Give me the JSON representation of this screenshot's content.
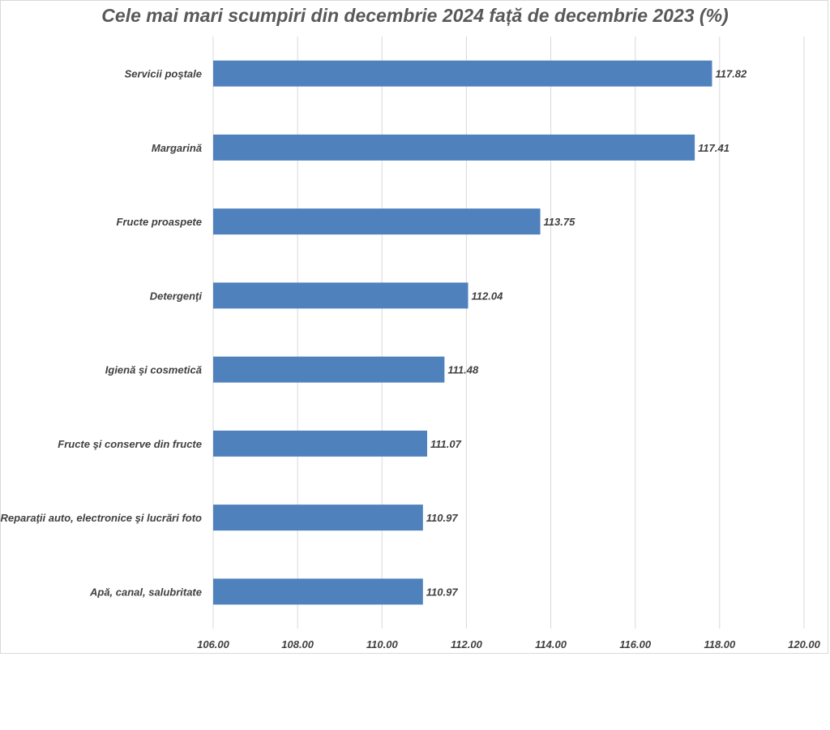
{
  "chart_data": {
    "type": "bar",
    "orientation": "horizontal",
    "title": "Cele mai mari scumpiri din decembrie 2024 față de decembrie 2023 (%)",
    "categories": [
      "Servicii poştale",
      "Margarină",
      "Fructe proaspete",
      "Detergenţi",
      "Igienă şi cosmetică",
      "Fructe şi conserve din fructe",
      "Reparaţii auto, electronice şi lucrări foto",
      "Apă, canal, salubritate"
    ],
    "values": [
      117.82,
      117.41,
      113.75,
      112.04,
      111.48,
      111.07,
      110.97,
      110.97
    ],
    "value_labels": [
      "117.82",
      "117.41",
      "113.75",
      "112.04",
      "111.48",
      "111.07",
      "110.97",
      "110.97"
    ],
    "xlim": [
      106,
      120
    ],
    "ticks": [
      "106.00",
      "108.00",
      "110.00",
      "112.00",
      "114.00",
      "116.00",
      "118.00",
      "120.00"
    ],
    "grid": true,
    "legend": "none",
    "bar_color": "#4f81bd"
  }
}
